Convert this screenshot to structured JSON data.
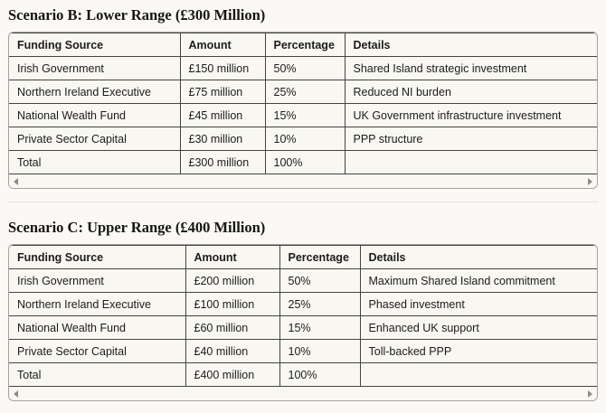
{
  "colors": {
    "background": "#FAF9F5",
    "card_border": "#A5A39C",
    "grid_border": "#45433E",
    "divider": "#E2E0D9",
    "text": "#1D1C19",
    "scroll_arrow": "#8E8C85"
  },
  "icons": {
    "scroll_left": "triangle-left",
    "scroll_right": "triangle-right"
  },
  "sections": [
    {
      "title": "Scenario B: Lower Range (£300 Million)",
      "table": {
        "headers": [
          "Funding Source",
          "Amount",
          "Percentage",
          "Details"
        ],
        "col_widths": [
          "189px",
          "94px",
          "88px",
          "auto"
        ],
        "rows": [
          {
            "cells": [
              "Irish Government",
              "£150 million",
              "50%",
              "Shared Island strategic investment"
            ],
            "bold": [
              true,
              true,
              true,
              false
            ]
          },
          {
            "cells": [
              "Northern Ireland Executive",
              "£75 million",
              "25%",
              "Reduced NI burden"
            ],
            "bold": [
              true,
              false,
              false,
              false
            ]
          },
          {
            "cells": [
              "National Wealth Fund",
              "£45 million",
              "15%",
              "UK Government infrastructure investment"
            ],
            "bold": [
              true,
              false,
              false,
              false
            ]
          },
          {
            "cells": [
              "Private Sector Capital",
              "£30 million",
              "10%",
              "PPP structure"
            ],
            "bold": [
              true,
              false,
              false,
              false
            ]
          },
          {
            "cells": [
              "Total",
              "£300 million",
              "100%",
              ""
            ],
            "bold": [
              true,
              true,
              true,
              false
            ]
          }
        ]
      }
    },
    {
      "title": "Scenario C: Upper Range (£400 Million)",
      "table": {
        "headers": [
          "Funding Source",
          "Amount",
          "Percentage",
          "Details"
        ],
        "col_widths": [
          "195px",
          "104px",
          "89px",
          "auto"
        ],
        "rows": [
          {
            "cells": [
              "Irish Government",
              "£200 million",
              "50%",
              "Maximum Shared Island commitment"
            ],
            "bold": [
              true,
              true,
              true,
              false
            ]
          },
          {
            "cells": [
              "Northern Ireland Executive",
              "£100 million",
              "25%",
              "Phased investment"
            ],
            "bold": [
              true,
              false,
              false,
              false
            ]
          },
          {
            "cells": [
              "National Wealth Fund",
              "£60 million",
              "15%",
              "Enhanced UK support"
            ],
            "bold": [
              true,
              false,
              false,
              false
            ]
          },
          {
            "cells": [
              "Private Sector Capital",
              "£40 million",
              "10%",
              "Toll-backed PPP"
            ],
            "bold": [
              true,
              false,
              false,
              false
            ]
          },
          {
            "cells": [
              "Total",
              "£400 million",
              "100%",
              ""
            ],
            "bold": [
              true,
              true,
              true,
              false
            ]
          }
        ]
      }
    }
  ]
}
